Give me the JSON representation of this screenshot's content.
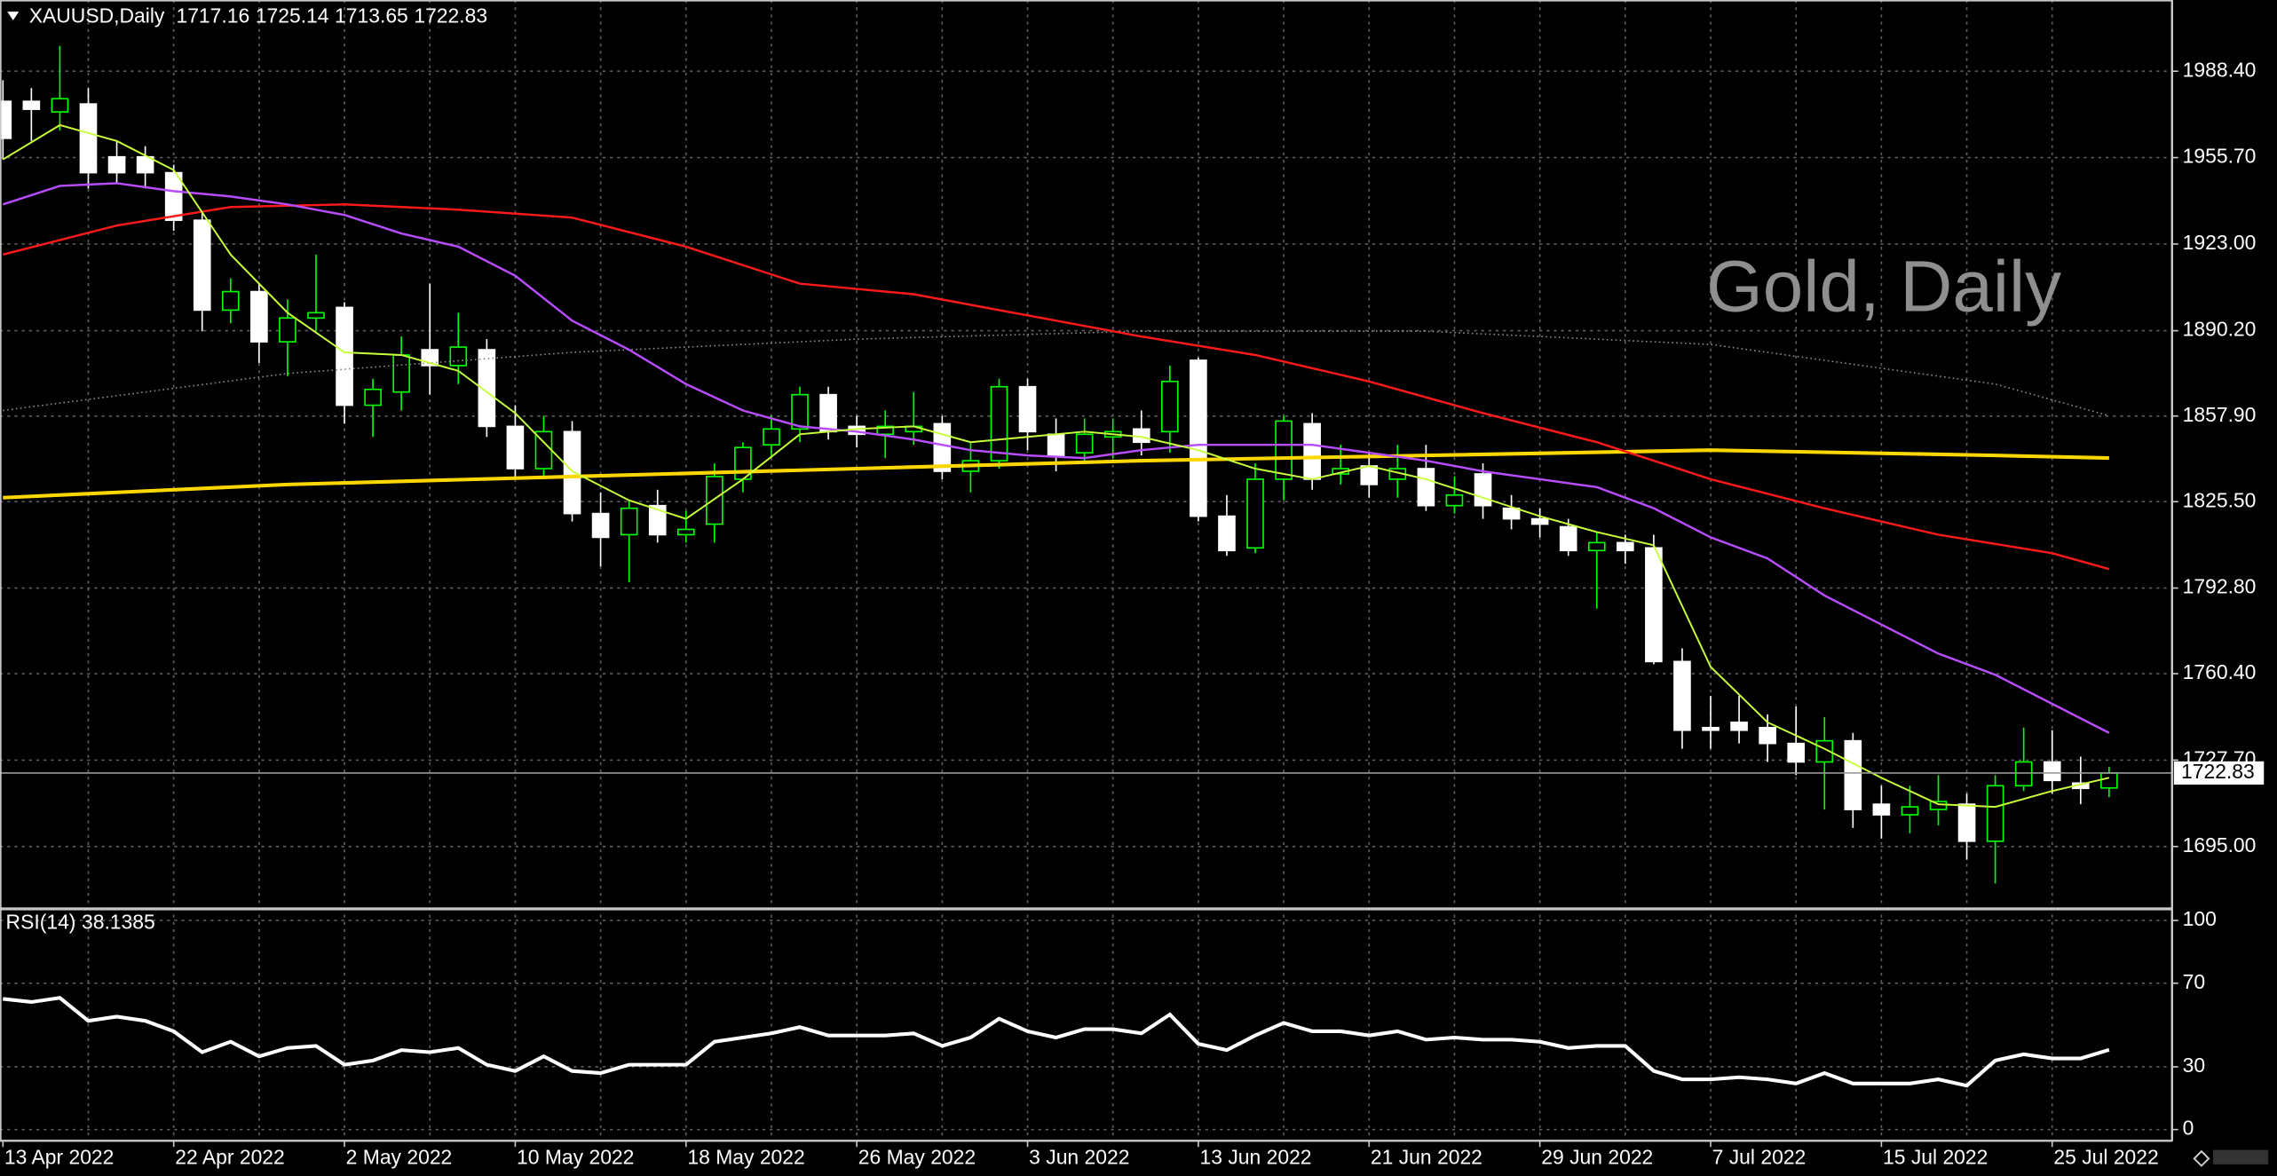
{
  "chart_data": {
    "type": "candlestick",
    "title": "Gold, Daily",
    "symbol": "XAUUSD,Daily",
    "categories": [
      "13 Apr 2022",
      null,
      null,
      null,
      null,
      null,
      "22 Apr 2022",
      null,
      null,
      null,
      null,
      null,
      "2 May 2022",
      null,
      null,
      null,
      null,
      null,
      "10 May 2022",
      null,
      null,
      null,
      null,
      null,
      "18 May 2022",
      null,
      null,
      null,
      null,
      null,
      "26 May 2022",
      null,
      null,
      null,
      null,
      null,
      "3 Jun 2022",
      null,
      null,
      null,
      null,
      null,
      "13 Jun 2022",
      null,
      null,
      null,
      null,
      null,
      "21 Jun 2022",
      null,
      null,
      null,
      null,
      null,
      "29 Jun 2022",
      null,
      null,
      null,
      null,
      null,
      "7 Jul 2022",
      null,
      null,
      null,
      null,
      null,
      "15 Jul 2022",
      null,
      null,
      null,
      null,
      null,
      "25 Jul 2022",
      null,
      null
    ],
    "open": [
      1977,
      1977,
      1973,
      1976,
      1956,
      1956,
      1950,
      1932,
      1898,
      1905,
      1886,
      1895,
      1899,
      1862,
      1867,
      1883,
      1877,
      1883,
      1854,
      1838,
      1852,
      1821,
      1813,
      1824,
      1813,
      1817,
      1834,
      1847,
      1853,
      1866,
      1854,
      1851,
      1852,
      1855,
      1837,
      1841,
      1869,
      1851,
      1844,
      1850,
      1853,
      1852,
      1879,
      1820,
      1808,
      1834,
      1855,
      1836,
      1839,
      1834,
      1838,
      1824,
      1836,
      1823,
      1819,
      1816,
      1807,
      1810,
      1808,
      1765,
      1740,
      1742,
      1740,
      1734,
      1727,
      1735,
      1711,
      1707,
      1709,
      1711,
      1697,
      1718,
      1727,
      1719,
      1717.16
    ],
    "high": [
      1985,
      1982,
      1998,
      1982,
      1962,
      1960,
      1953,
      1935,
      1910,
      1908,
      1902,
      1919,
      1901,
      1872,
      1888,
      1908,
      1897,
      1887,
      1862,
      1858,
      1856,
      1829,
      1826,
      1830,
      1822,
      1840,
      1848,
      1858,
      1869,
      1869,
      1858,
      1860,
      1867,
      1858,
      1848,
      1872,
      1872,
      1857,
      1857,
      1857,
      1860,
      1877,
      1880,
      1828,
      1840,
      1858,
      1859,
      1847,
      1844,
      1847,
      1847,
      1835,
      1840,
      1828,
      1823,
      1819,
      1814,
      1813,
      1813,
      1770,
      1752,
      1752,
      1745,
      1748,
      1744,
      1738,
      1718,
      1718,
      1722,
      1715,
      1722,
      1740,
      1739,
      1729,
      1725.14
    ],
    "low": [
      1955,
      1962,
      1966,
      1944,
      1946,
      1944,
      1928,
      1890,
      1893,
      1878,
      1873,
      1890,
      1855,
      1850,
      1860,
      1866,
      1870,
      1850,
      1835,
      1834,
      1818,
      1801,
      1795,
      1810,
      1810,
      1810,
      1829,
      1842,
      1848,
      1849,
      1846,
      1842,
      1847,
      1834,
      1829,
      1838,
      1845,
      1837,
      1840,
      1842,
      1843,
      1844,
      1818,
      1805,
      1806,
      1826,
      1830,
      1832,
      1827,
      1827,
      1822,
      1821,
      1819,
      1815,
      1812,
      1805,
      1785,
      1802,
      1764,
      1732,
      1732,
      1734,
      1727,
      1722,
      1709,
      1702,
      1698,
      1700,
      1703,
      1690,
      1681,
      1716,
      1715,
      1711,
      1713.65
    ],
    "close": [
      1963,
      1974,
      1978,
      1950,
      1950,
      1950,
      1932,
      1898,
      1905,
      1886,
      1895,
      1897,
      1862,
      1868,
      1881,
      1877,
      1884,
      1854,
      1838,
      1852,
      1821,
      1812,
      1823,
      1813,
      1815,
      1835,
      1846,
      1853,
      1866,
      1852,
      1851,
      1854,
      1854,
      1837,
      1841,
      1869,
      1852,
      1843,
      1851,
      1852,
      1848,
      1871,
      1820,
      1807,
      1834,
      1856,
      1834,
      1838,
      1832,
      1838,
      1824,
      1828,
      1824,
      1819,
      1817,
      1807,
      1810,
      1807,
      1765,
      1739,
      1739,
      1739,
      1734,
      1727,
      1735,
      1709,
      1707,
      1710,
      1712,
      1697,
      1718,
      1727,
      1720,
      1717,
      1722.83
    ],
    "bull_color": "#00ff00",
    "bear_color": "#ffffff",
    "ylim": [
      1672.5,
      2013.7
    ],
    "yticks": [
      {
        "value": 1695,
        "label": "1695.00"
      },
      {
        "value": 1727.7,
        "label": "1727.70"
      },
      {
        "value": 1760.4,
        "label": "1760.40"
      },
      {
        "value": 1792.8,
        "label": "1792.80"
      },
      {
        "value": 1825.5,
        "label": "1825.50"
      },
      {
        "value": 1857.9,
        "label": "1857.90"
      },
      {
        "value": 1890.2,
        "label": "1890.20"
      },
      {
        "value": 1923,
        "label": "1923.00"
      },
      {
        "value": 1955.7,
        "label": "1955.70"
      },
      {
        "value": 1988.4,
        "label": "1988.40"
      }
    ],
    "grid": true,
    "series": [
      {
        "color": "#888888",
        "dash": true,
        "width": 1,
        "x": [
          0,
          10,
          20,
          30,
          40,
          50,
          60,
          70,
          74
        ],
        "values": [
          1860,
          1874,
          1882,
          1887,
          1890,
          1890,
          1885,
          1870,
          1858
        ]
      },
      {
        "color": "#ffd700",
        "width": 2.5,
        "x": [
          0,
          10,
          20,
          30,
          40,
          50,
          60,
          70,
          74
        ],
        "values": [
          1827,
          1832,
          1835,
          1838,
          1841,
          1843,
          1845,
          1843,
          1842
        ]
      },
      {
        "color": "#ff1a1a",
        "width": 1.5,
        "x": [
          0,
          4,
          8,
          12,
          16,
          20,
          24,
          28,
          32,
          36,
          40,
          44,
          48,
          52,
          56,
          60,
          64,
          68,
          72,
          74
        ],
        "values": [
          1919,
          1930,
          1937,
          1938,
          1936,
          1933,
          1922,
          1908,
          1904,
          1896,
          1888,
          1881,
          1871,
          1859,
          1848,
          1834,
          1823,
          1813,
          1806,
          1800
        ]
      },
      {
        "color": "#b84dff",
        "width": 1.5,
        "x": [
          0,
          2,
          4,
          6,
          8,
          10,
          12,
          14,
          16,
          18,
          20,
          22,
          24,
          26,
          28,
          30,
          32,
          34,
          36,
          38,
          40,
          42,
          44,
          46,
          48,
          50,
          52,
          54,
          56,
          58,
          60,
          62,
          64,
          66,
          68,
          70,
          72,
          74
        ],
        "values": [
          1938,
          1945,
          1946,
          1943,
          1941,
          1938,
          1934,
          1927,
          1922,
          1911,
          1894,
          1883,
          1870,
          1860,
          1854,
          1852,
          1849,
          1845,
          1843,
          1842,
          1845,
          1847,
          1847,
          1847,
          1844,
          1841,
          1837,
          1834,
          1831,
          1823,
          1812,
          1804,
          1790,
          1779,
          1768,
          1760,
          1749,
          1738
        ]
      },
      {
        "color": "#c8ff3c",
        "width": 1.2,
        "x": [
          0,
          2,
          4,
          6,
          8,
          10,
          12,
          14,
          16,
          18,
          20,
          22,
          24,
          26,
          28,
          30,
          32,
          34,
          36,
          38,
          40,
          42,
          44,
          46,
          48,
          50,
          52,
          54,
          56,
          58,
          60,
          62,
          64,
          66,
          68,
          70,
          72,
          74
        ],
        "values": [
          1955,
          1968,
          1962,
          1951,
          1919,
          1897,
          1882,
          1881,
          1875,
          1859,
          1837,
          1826,
          1819,
          1834,
          1851,
          1853,
          1854,
          1848,
          1850,
          1852,
          1850,
          1845,
          1838,
          1834,
          1839,
          1834,
          1827,
          1820,
          1814,
          1809,
          1763,
          1742,
          1732,
          1721,
          1711,
          1710,
          1716,
          1721
        ]
      }
    ],
    "indicator": {
      "name": "RSI(14)",
      "color": "#ffffff",
      "ylim": [
        0,
        100
      ],
      "yticks": [
        0,
        30,
        70,
        100
      ],
      "values": [
        62.5,
        61,
        63,
        52,
        54,
        52,
        47,
        37,
        42,
        35,
        39,
        40,
        31,
        33,
        38,
        37,
        39,
        31,
        28,
        35,
        28,
        27,
        31,
        31,
        31,
        42,
        44,
        46,
        49,
        45,
        45,
        45,
        46,
        40,
        44,
        53,
        47,
        44,
        48,
        48,
        46,
        55,
        41,
        38,
        45,
        51,
        47,
        47,
        45,
        47,
        43,
        44,
        43,
        43,
        42,
        39,
        40,
        40,
        28,
        24,
        24,
        25,
        24,
        22,
        27,
        22,
        22,
        22,
        24,
        21,
        33,
        36,
        34,
        34,
        38.1385
      ]
    }
  }
}
